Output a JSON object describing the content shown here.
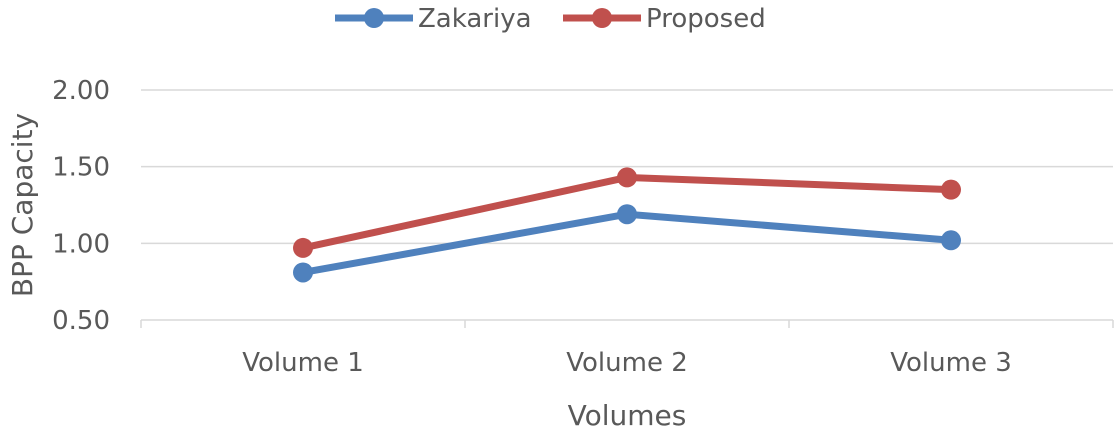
{
  "chart_data": {
    "type": "line",
    "categories": [
      "Volume 1",
      "Volume 2",
      "Volume 3"
    ],
    "series": [
      {
        "name": "Zakariya",
        "values": [
          0.81,
          1.19,
          1.02
        ],
        "color": "#4f81bd"
      },
      {
        "name": "Proposed",
        "values": [
          0.97,
          1.43,
          1.35
        ],
        "color": "#c0504d"
      }
    ],
    "title": "",
    "xlabel": "Volumes",
    "ylabel": "BPP Capacity",
    "ylim": [
      0.5,
      2.0
    ],
    "yticks": [
      "0.50",
      "1.00",
      "1.50",
      "2.00"
    ],
    "grid": true,
    "legend_position": "top"
  }
}
